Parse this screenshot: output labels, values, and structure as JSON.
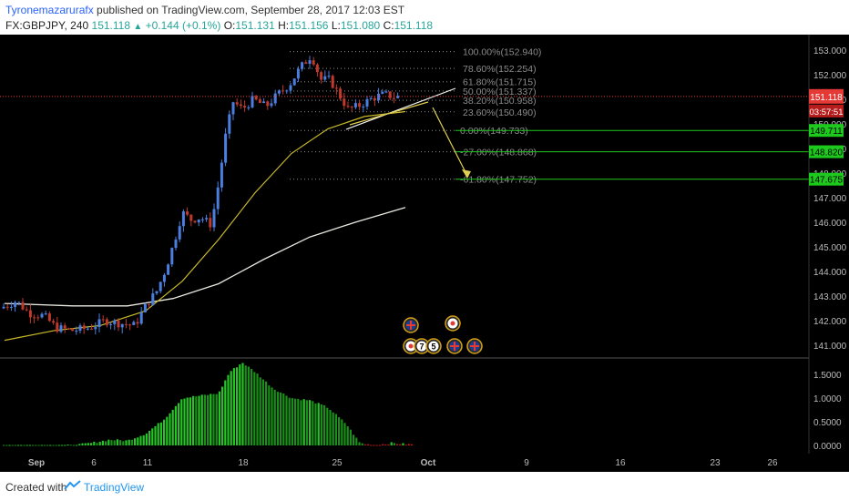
{
  "header": {
    "author": "Tyronemazarurafx",
    "published": "published on TradingView.com, September 28, 2017 12:03 EST",
    "symbol": "FX:GBPJPY, 240",
    "last": "151.118",
    "change": "+0.144 (+0.1%)",
    "open_label": "O:",
    "open": "151.131",
    "high_label": "H:",
    "high": "151.156",
    "low_label": "L:",
    "low": "151.080",
    "close_label": "C:",
    "close": "151.118"
  },
  "footer": {
    "created_with": "Created with",
    "brand": "TradingView"
  },
  "colors": {
    "background": "#000000",
    "bull": "#4a7fe0",
    "bear": "#c0392b",
    "fib": "#8a8a8a",
    "target": "#1ec91e",
    "price_line": "#e53935",
    "ma_fast": "#c8b82a",
    "ma_slow": "#e8e8e0",
    "histogram": "#26c526"
  },
  "chart_data": {
    "type": "candlestick",
    "symbol": "GBPJPY",
    "timeframe": "240",
    "x_ticks": [
      "Sep",
      "6",
      "11",
      "18",
      "25",
      "Oct",
      "9",
      "16",
      "23",
      "26"
    ],
    "y_ticks": [
      "153.000",
      "152.000",
      "151.000",
      "150.000",
      "149.000",
      "148.000",
      "147.000",
      "146.000",
      "145.000",
      "144.000",
      "143.000",
      "142.000",
      "141.000"
    ],
    "ylim": [
      140.7,
      153.3
    ],
    "price_series": [
      {
        "x": 0,
        "y": 142.5
      },
      {
        "x": 18,
        "y": 142.8
      },
      {
        "x": 32,
        "y": 142.3
      },
      {
        "x": 48,
        "y": 142.2
      },
      {
        "x": 62,
        "y": 141.7
      },
      {
        "x": 80,
        "y": 141.6
      },
      {
        "x": 98,
        "y": 141.7
      },
      {
        "x": 115,
        "y": 142.0
      },
      {
        "x": 130,
        "y": 141.9
      },
      {
        "x": 148,
        "y": 141.8
      },
      {
        "x": 160,
        "y": 142.6
      },
      {
        "x": 172,
        "y": 143.2
      },
      {
        "x": 182,
        "y": 144.1
      },
      {
        "x": 192,
        "y": 145.3
      },
      {
        "x": 200,
        "y": 146.4
      },
      {
        "x": 210,
        "y": 146.1
      },
      {
        "x": 220,
        "y": 146.2
      },
      {
        "x": 232,
        "y": 145.9
      },
      {
        "x": 240,
        "y": 147.6
      },
      {
        "x": 248,
        "y": 149.6
      },
      {
        "x": 256,
        "y": 150.9
      },
      {
        "x": 266,
        "y": 150.6
      },
      {
        "x": 278,
        "y": 151.0
      },
      {
        "x": 292,
        "y": 150.7
      },
      {
        "x": 305,
        "y": 151.2
      },
      {
        "x": 318,
        "y": 151.6
      },
      {
        "x": 330,
        "y": 152.3
      },
      {
        "x": 342,
        "y": 152.8
      },
      {
        "x": 352,
        "y": 151.8
      },
      {
        "x": 362,
        "y": 151.8
      },
      {
        "x": 372,
        "y": 151.2
      },
      {
        "x": 382,
        "y": 150.6
      },
      {
        "x": 392,
        "y": 150.7
      },
      {
        "x": 402,
        "y": 150.9
      },
      {
        "x": 412,
        "y": 151.1
      },
      {
        "x": 422,
        "y": 151.2
      },
      {
        "x": 432,
        "y": 151.1
      },
      {
        "x": 440,
        "y": 151.1
      }
    ],
    "current_price": "151.118",
    "countdown": "03:57:51",
    "fib_levels": [
      {
        "label": "100.00%(152.940)",
        "value": 152.94
      },
      {
        "label": "78.60%(152.254)",
        "value": 152.254
      },
      {
        "label": "61.80%(151.715)",
        "value": 151.715
      },
      {
        "label": "50.00%(151.337)",
        "value": 151.337
      },
      {
        "label": "38.20%(150.958)",
        "value": 150.958
      },
      {
        "label": "23.60%(150.490)",
        "value": 150.49
      },
      {
        "label": "0.00%(149.733)",
        "value": 149.733
      },
      {
        "label": "-27.00%(148.868)",
        "value": 148.868
      },
      {
        "label": "-61.80%(147.752)",
        "value": 147.752
      }
    ],
    "target_tags": [
      "149.711",
      "148.820",
      "147.675"
    ],
    "partially_hidden_ticks": [
      "150.000",
      "149.000",
      "148.000"
    ],
    "ma_fast": [
      {
        "x": 5,
        "y": 141.2
      },
      {
        "x": 60,
        "y": 141.6
      },
      {
        "x": 110,
        "y": 141.8
      },
      {
        "x": 160,
        "y": 142.4
      },
      {
        "x": 200,
        "y": 143.6
      },
      {
        "x": 240,
        "y": 145.3
      },
      {
        "x": 280,
        "y": 147.2
      },
      {
        "x": 320,
        "y": 148.8
      },
      {
        "x": 360,
        "y": 149.8
      },
      {
        "x": 400,
        "y": 150.3
      },
      {
        "x": 445,
        "y": 150.5
      }
    ],
    "ma_slow": [
      {
        "x": 5,
        "y": 142.7
      },
      {
        "x": 80,
        "y": 142.6
      },
      {
        "x": 140,
        "y": 142.6
      },
      {
        "x": 190,
        "y": 142.9
      },
      {
        "x": 240,
        "y": 143.5
      },
      {
        "x": 290,
        "y": 144.5
      },
      {
        "x": 340,
        "y": 145.4
      },
      {
        "x": 390,
        "y": 146.0
      },
      {
        "x": 445,
        "y": 146.6
      }
    ],
    "histogram_ticks": [
      "1.5000",
      "1.0000",
      "0.5000",
      "0.0000"
    ],
    "histogram_ylim": [
      -0.05,
      1.8
    ],
    "histogram_points": [
      {
        "x": 0,
        "y": 0.0
      },
      {
        "x": 80,
        "y": 0.0
      },
      {
        "x": 100,
        "y": 0.05
      },
      {
        "x": 120,
        "y": 0.12
      },
      {
        "x": 140,
        "y": 0.1
      },
      {
        "x": 160,
        "y": 0.25
      },
      {
        "x": 180,
        "y": 0.55
      },
      {
        "x": 200,
        "y": 1.0
      },
      {
        "x": 220,
        "y": 1.05
      },
      {
        "x": 240,
        "y": 1.1
      },
      {
        "x": 252,
        "y": 1.55
      },
      {
        "x": 266,
        "y": 1.75
      },
      {
        "x": 280,
        "y": 1.55
      },
      {
        "x": 300,
        "y": 1.2
      },
      {
        "x": 320,
        "y": 1.0
      },
      {
        "x": 340,
        "y": 0.95
      },
      {
        "x": 360,
        "y": 0.8
      },
      {
        "x": 380,
        "y": 0.45
      },
      {
        "x": 395,
        "y": 0.05
      },
      {
        "x": 410,
        "y": 0.0
      },
      {
        "x": 430,
        "y": 0.05
      },
      {
        "x": 450,
        "y": 0.02
      }
    ],
    "event_marks": [
      {
        "label": "UK",
        "row": 1,
        "slot": 0
      },
      {
        "label": "JP",
        "row": 1,
        "slot": 2
      },
      {
        "label": "JP",
        "row": 2,
        "slot": 0
      },
      {
        "label": "7",
        "row": 2,
        "slot": 1
      },
      {
        "label": "5",
        "row": 2,
        "slot": 2
      },
      {
        "label": "UK",
        "row": 2,
        "slot": 3
      },
      {
        "label": "UK",
        "row": 2,
        "slot": 4
      }
    ]
  }
}
